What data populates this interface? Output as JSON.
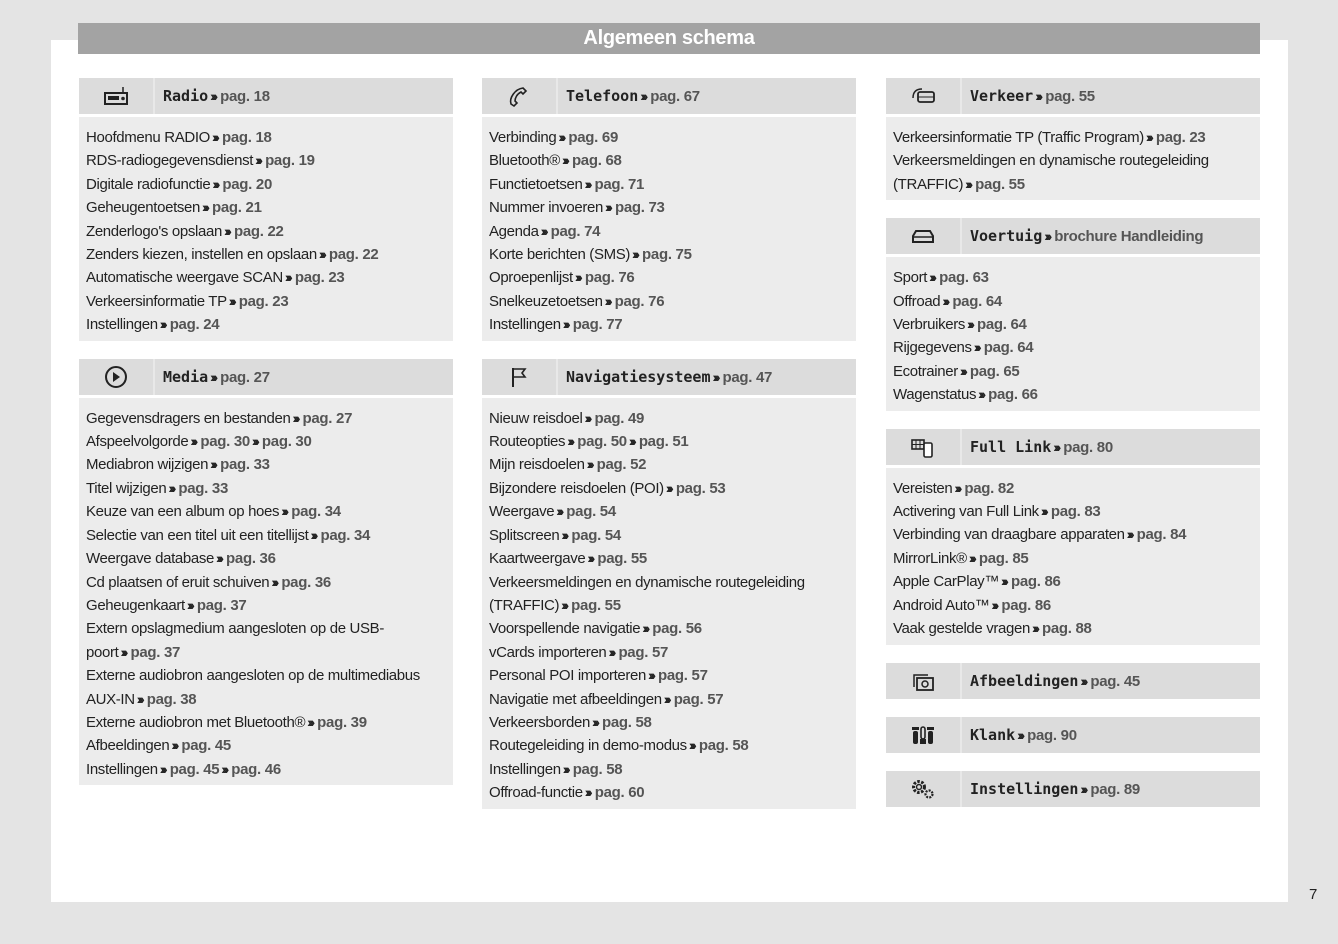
{
  "title": "Algemeen schema",
  "page_number": "7",
  "columns": [
    [
      {
        "name": "Radio",
        "icon": "radio-icon",
        "ref": "pag. 18",
        "items": [
          {
            "text": "Hoofdmenu RADIO",
            "refs": [
              "pag. 18"
            ]
          },
          {
            "text": "RDS-radiogegevensdienst",
            "refs": [
              "pag. 19"
            ]
          },
          {
            "text": "Digitale radiofunctie",
            "refs": [
              "pag. 20"
            ]
          },
          {
            "text": "Geheugentoetsen",
            "refs": [
              "pag. 21"
            ]
          },
          {
            "text": "Zenderlogo's opslaan",
            "refs": [
              "pag. 22"
            ]
          },
          {
            "text": "Zenders kiezen, instellen en opslaan",
            "refs": [
              "pag. 22"
            ]
          },
          {
            "text": "Automatische weergave SCAN",
            "refs": [
              "pag. 23"
            ]
          },
          {
            "text": "Verkeersinformatie TP",
            "refs": [
              "pag. 23"
            ]
          },
          {
            "text": "Instellingen",
            "refs": [
              "pag. 24"
            ]
          }
        ]
      },
      {
        "name": "Media",
        "icon": "play-icon",
        "ref": "pag. 27",
        "items": [
          {
            "text": "Gegevensdragers en bestanden",
            "refs": [
              "pag. 27"
            ]
          },
          {
            "text": "Afspeelvolgorde",
            "refs": [
              "pag. 30",
              "pag. 30"
            ]
          },
          {
            "text": "Mediabron wijzigen",
            "refs": [
              "pag. 33"
            ]
          },
          {
            "text": "Titel wijzigen",
            "refs": [
              "pag. 33"
            ]
          },
          {
            "text": "Keuze van een album op hoes",
            "refs": [
              "pag. 34"
            ]
          },
          {
            "text": "Selectie van een titel uit een titellijst",
            "refs": [
              "pag. 34"
            ]
          },
          {
            "text": "Weergave database",
            "refs": [
              "pag. 36"
            ]
          },
          {
            "text": "Cd plaatsen of eruit schuiven",
            "refs": [
              "pag. 36"
            ]
          },
          {
            "text": "Geheugenkaart",
            "refs": [
              "pag. 37"
            ]
          },
          {
            "text": "Extern opslagmedium aangesloten op de USB-poort",
            "refs": [
              "pag. 37"
            ]
          },
          {
            "text": "Externe audiobron aangesloten op de multimediabus AUX-IN",
            "refs": [
              "pag. 38"
            ]
          },
          {
            "text": "Externe audiobron met Bluetooth®",
            "refs": [
              "pag. 39"
            ]
          },
          {
            "text": "Afbeeldingen",
            "refs": [
              "pag. 45"
            ]
          },
          {
            "text": "Instellingen",
            "refs": [
              "pag. 45",
              "pag. 46"
            ]
          }
        ]
      }
    ],
    [
      {
        "name": "Telefoon",
        "icon": "phone-icon",
        "ref": "pag. 67",
        "items": [
          {
            "text": "Verbinding",
            "refs": [
              "pag. 69"
            ]
          },
          {
            "text": "Bluetooth®",
            "refs": [
              "pag. 68"
            ]
          },
          {
            "text": "Functietoetsen",
            "refs": [
              "pag. 71"
            ]
          },
          {
            "text": "Nummer invoeren",
            "refs": [
              "pag. 73"
            ]
          },
          {
            "text": "Agenda",
            "refs": [
              "pag. 74"
            ]
          },
          {
            "text": "Korte berichten (SMS)",
            "refs": [
              "pag. 75"
            ]
          },
          {
            "text": "Oproepenlijst",
            "refs": [
              "pag. 76"
            ]
          },
          {
            "text": "Snelkeuzetoetsen",
            "refs": [
              "pag. 76"
            ]
          },
          {
            "text": "Instellingen",
            "refs": [
              "pag. 77"
            ]
          }
        ]
      },
      {
        "name": "Navigatiesysteem",
        "icon": "flag-icon",
        "ref": "pag. 47",
        "items": [
          {
            "text": "Nieuw reisdoel",
            "refs": [
              "pag. 49"
            ]
          },
          {
            "text": "Routeopties",
            "refs": [
              "pag. 50",
              "pag. 51"
            ]
          },
          {
            "text": "Mijn reisdoelen",
            "refs": [
              "pag. 52"
            ]
          },
          {
            "text": "Bijzondere reisdoelen (POI)",
            "refs": [
              "pag. 53"
            ]
          },
          {
            "text": "Weergave",
            "refs": [
              "pag. 54"
            ]
          },
          {
            "text": "Splitscreen",
            "refs": [
              "pag. 54"
            ]
          },
          {
            "text": "Kaartweergave",
            "refs": [
              "pag. 55"
            ]
          },
          {
            "text": "Verkeersmeldingen en dynamische routegeleiding (TRAFFIC)",
            "refs": [
              "pag. 55"
            ]
          },
          {
            "text": "Voorspellende navigatie",
            "refs": [
              "pag. 56"
            ]
          },
          {
            "text": "vCards importeren",
            "refs": [
              "pag. 57"
            ]
          },
          {
            "text": "Personal POI importeren",
            "refs": [
              "pag. 57"
            ]
          },
          {
            "text": "Navigatie met afbeeldingen",
            "refs": [
              "pag. 57"
            ]
          },
          {
            "text": "Verkeersborden",
            "refs": [
              "pag. 58"
            ]
          },
          {
            "text": "Routegeleiding in demo-modus",
            "refs": [
              "pag. 58"
            ]
          },
          {
            "text": "Instellingen",
            "refs": [
              "pag. 58"
            ]
          },
          {
            "text": "Offroad-functie",
            "refs": [
              "pag. 60"
            ]
          }
        ]
      }
    ],
    [
      {
        "name": "Verkeer",
        "icon": "traffic-icon",
        "ref": "pag. 55",
        "items": [
          {
            "text": "Verkeersinformatie TP (Traffic Program)",
            "refs": [
              "pag. 23"
            ]
          },
          {
            "text": "Verkeersmeldingen en dynamische routegeleiding (TRAFFIC)",
            "refs": [
              "pag. 55"
            ]
          }
        ]
      },
      {
        "name": "Voertuig",
        "icon": "car-icon",
        "ref": "brochure Handleiding",
        "items": [
          {
            "text": "Sport",
            "refs": [
              "pag. 63"
            ]
          },
          {
            "text": "Offroad",
            "refs": [
              "pag. 64"
            ]
          },
          {
            "text": "Verbruikers",
            "refs": [
              "pag. 64"
            ]
          },
          {
            "text": "Rijgegevens",
            "refs": [
              "pag. 64"
            ]
          },
          {
            "text": "Ecotrainer",
            "refs": [
              "pag. 65"
            ]
          },
          {
            "text": "Wagenstatus",
            "refs": [
              "pag. 66"
            ]
          }
        ]
      },
      {
        "name": "Full Link",
        "icon": "full-link-icon",
        "ref": "pag. 80",
        "items": [
          {
            "text": "Vereisten",
            "refs": [
              "pag. 82"
            ]
          },
          {
            "text": "Activering van Full Link",
            "refs": [
              "pag. 83"
            ]
          },
          {
            "text": "Verbinding van draagbare apparaten",
            "refs": [
              "pag. 84"
            ]
          },
          {
            "text": "MirrorLink®",
            "refs": [
              "pag. 85"
            ]
          },
          {
            "text": "Apple CarPlay™",
            "refs": [
              "pag. 86"
            ]
          },
          {
            "text": "Android Auto™",
            "refs": [
              "pag. 86"
            ]
          },
          {
            "text": "Vaak gestelde vragen",
            "refs": [
              "pag. 88"
            ]
          }
        ]
      },
      {
        "name": "Afbeeldingen",
        "icon": "pictures-icon",
        "ref": "pag. 45",
        "items": []
      },
      {
        "name": "Klank",
        "icon": "sound-icon",
        "ref": "pag. 90",
        "items": []
      },
      {
        "name": "Instellingen",
        "icon": "gears-icon",
        "ref": "pag. 89",
        "items": []
      }
    ]
  ]
}
